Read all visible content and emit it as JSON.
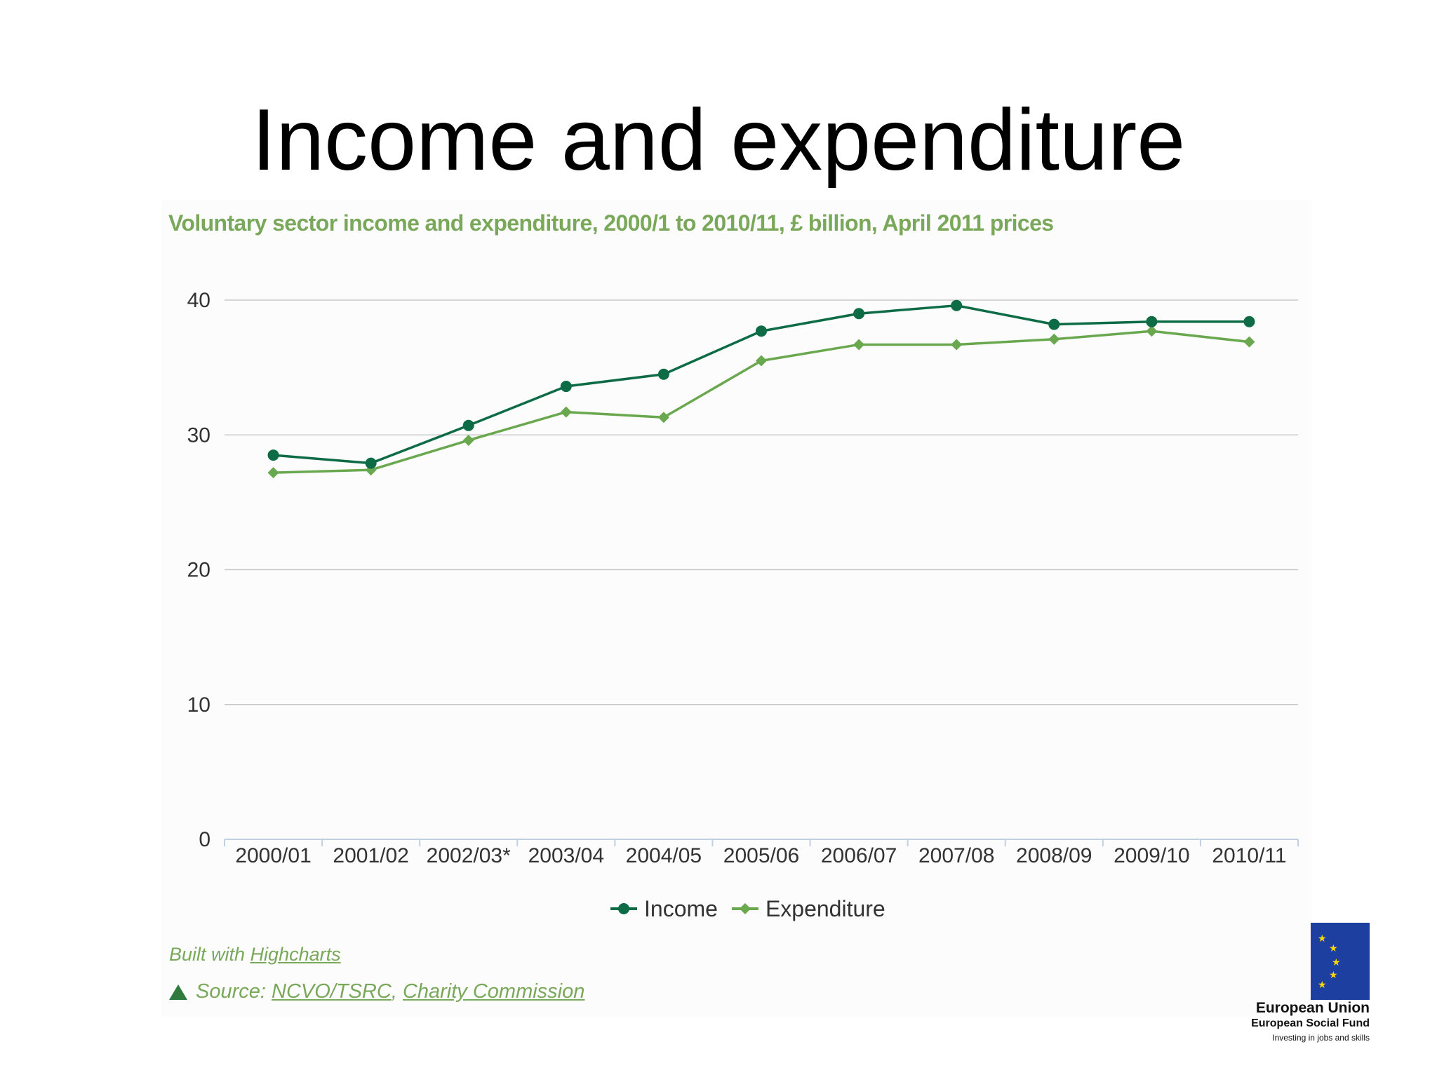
{
  "slide": {
    "title": "Income and expenditure"
  },
  "chart_data": {
    "type": "line",
    "title": "Voluntary sector income and expenditure, 2000/1 to 2010/11, £ billion, April 2011 prices",
    "categories": [
      "2000/01",
      "2001/02",
      "2002/03*",
      "2003/04",
      "2004/05",
      "2005/06",
      "2006/07",
      "2007/08",
      "2008/09",
      "2009/10",
      "2010/11"
    ],
    "y_ticks": [
      "0",
      "10",
      "20",
      "30",
      "40"
    ],
    "ylim": [
      0,
      40
    ],
    "grid": true,
    "legend_position": "bottom-center",
    "series": [
      {
        "name": "Income",
        "color": "#0d6b45",
        "marker": "circle",
        "values": [
          28.5,
          27.9,
          30.7,
          33.6,
          34.5,
          37.7,
          39.0,
          39.6,
          38.2,
          38.4,
          38.4
        ]
      },
      {
        "name": "Expenditure",
        "color": "#6aa84f",
        "marker": "diamond",
        "values": [
          27.2,
          27.4,
          29.6,
          31.7,
          31.3,
          35.5,
          36.7,
          36.7,
          37.1,
          37.7,
          36.9
        ]
      }
    ]
  },
  "credits": {
    "built_with": "Built with",
    "highcharts_link": "Highcharts"
  },
  "source": {
    "label": "Source:",
    "link1": "NCVO/TSRC",
    "separator": ",",
    "link2": "Charity Commission"
  },
  "logo": {
    "line1": "European Union",
    "line2": "European Social Fund",
    "line3": "Investing in jobs and skills",
    "flag_color": "#1d3fa0",
    "star_color": "#ffd700"
  }
}
